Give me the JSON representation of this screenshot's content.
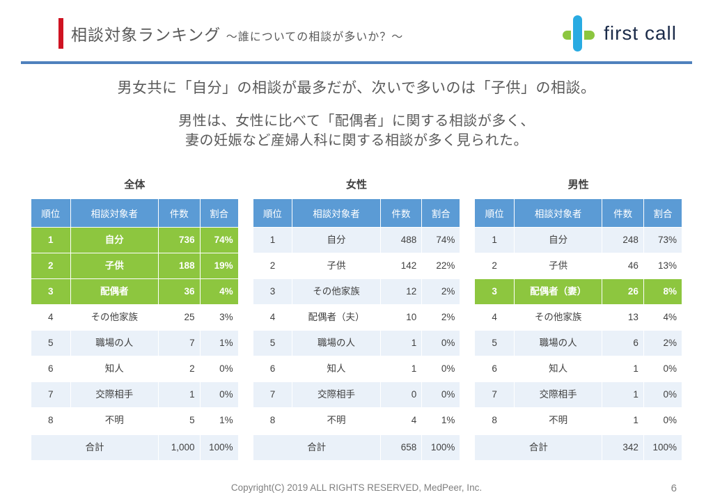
{
  "slide": {
    "title": "相談対象ランキング",
    "subtitle": "～誰についての相談が多いか？～",
    "lead_line1": "男女共に「自分」の相談が最多だが、次いで多いのは「子供」の相談。",
    "lead_line2": "男性は、女性に比べて「配偶者」に関する相談が多く、",
    "lead_line3": "妻の妊娠など産婦人科に関する相談が多く見られた。",
    "footer": "Copyright(C) 2019 ALL RIGHTS RESERVED, MedPeer, Inc.",
    "page_number": "6"
  },
  "logo": {
    "text": "first call",
    "icon": "plus-cross-icon",
    "colors": {
      "blue": "#29ABE2",
      "green": "#8CC63F",
      "text": "#1B2B49"
    }
  },
  "colors": {
    "accent_red": "#CF1322",
    "divider_blue": "#4F81BD",
    "table_header_blue": "#5B9BD5",
    "highlight_green": "#8DC63F",
    "band_light_blue": "#EAF1F9",
    "body_gray": "#595959"
  },
  "tables": [
    {
      "title": "全体",
      "headers": [
        "順位",
        "相談対象者",
        "件数",
        "割合"
      ],
      "rows": [
        {
          "cells": [
            "1",
            "自分",
            "736",
            "74%"
          ],
          "highlight": true
        },
        {
          "cells": [
            "2",
            "子供",
            "188",
            "19%"
          ],
          "highlight": true
        },
        {
          "cells": [
            "3",
            "配偶者",
            "36",
            "4%"
          ],
          "highlight": true
        },
        {
          "cells": [
            "4",
            "その他家族",
            "25",
            "3%"
          ],
          "highlight": false
        },
        {
          "cells": [
            "5",
            "職場の人",
            "7",
            "1%"
          ],
          "highlight": false
        },
        {
          "cells": [
            "6",
            "知人",
            "2",
            "0%"
          ],
          "highlight": false
        },
        {
          "cells": [
            "7",
            "交際相手",
            "1",
            "0%"
          ],
          "highlight": false
        },
        {
          "cells": [
            "8",
            "不明",
            "5",
            "1%"
          ],
          "highlight": false
        }
      ],
      "total": {
        "label": "合計",
        "count": "1,000",
        "percent": "100%"
      }
    },
    {
      "title": "女性",
      "headers": [
        "順位",
        "相談対象者",
        "件数",
        "割合"
      ],
      "rows": [
        {
          "cells": [
            "1",
            "自分",
            "488",
            "74%"
          ],
          "highlight": false
        },
        {
          "cells": [
            "2",
            "子供",
            "142",
            "22%"
          ],
          "highlight": false
        },
        {
          "cells": [
            "3",
            "その他家族",
            "12",
            "2%"
          ],
          "highlight": false
        },
        {
          "cells": [
            "4",
            "配偶者（夫）",
            "10",
            "2%"
          ],
          "highlight": false
        },
        {
          "cells": [
            "5",
            "職場の人",
            "1",
            "0%"
          ],
          "highlight": false
        },
        {
          "cells": [
            "6",
            "知人",
            "1",
            "0%"
          ],
          "highlight": false
        },
        {
          "cells": [
            "7",
            "交際相手",
            "0",
            "0%"
          ],
          "highlight": false
        },
        {
          "cells": [
            "8",
            "不明",
            "4",
            "1%"
          ],
          "highlight": false
        }
      ],
      "total": {
        "label": "合計",
        "count": "658",
        "percent": "100%"
      }
    },
    {
      "title": "男性",
      "headers": [
        "順位",
        "相談対象者",
        "件数",
        "割合"
      ],
      "rows": [
        {
          "cells": [
            "1",
            "自分",
            "248",
            "73%"
          ],
          "highlight": false
        },
        {
          "cells": [
            "2",
            "子供",
            "46",
            "13%"
          ],
          "highlight": false
        },
        {
          "cells": [
            "3",
            "配偶者（妻）",
            "26",
            "8%"
          ],
          "highlight": true
        },
        {
          "cells": [
            "4",
            "その他家族",
            "13",
            "4%"
          ],
          "highlight": false
        },
        {
          "cells": [
            "5",
            "職場の人",
            "6",
            "2%"
          ],
          "highlight": false
        },
        {
          "cells": [
            "6",
            "知人",
            "1",
            "0%"
          ],
          "highlight": false
        },
        {
          "cells": [
            "7",
            "交際相手",
            "1",
            "0%"
          ],
          "highlight": false
        },
        {
          "cells": [
            "8",
            "不明",
            "1",
            "0%"
          ],
          "highlight": false
        }
      ],
      "total": {
        "label": "合計",
        "count": "342",
        "percent": "100%"
      }
    }
  ]
}
